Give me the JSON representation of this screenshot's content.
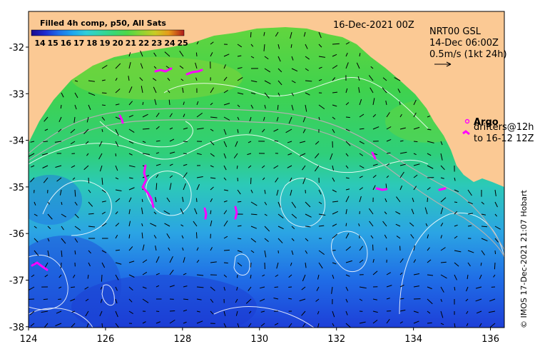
{
  "map": {
    "colorbar_title": "Filled 4h comp, p50, All Sats",
    "colorbar_ticks": [
      "14",
      "15",
      "16",
      "17",
      "18",
      "19",
      "20",
      "21",
      "22",
      "23",
      "24",
      "25"
    ],
    "colorbar_colors": [
      "#1a0a8c",
      "#1e2bd0",
      "#1f6fe8",
      "#1ea6ee",
      "#2fcfd8",
      "#33d6a6",
      "#39d874",
      "#4fd846",
      "#8ed432",
      "#c9cc24",
      "#e79a1a",
      "#d8501a",
      "#b01a1a"
    ],
    "date_label": "16-Dec-2021 00Z",
    "product_label": "NRT00 GSL",
    "time_label": "14-Dec 06:00Z",
    "scale_label": "0.5m/s (1kt 24h)",
    "legend_argo": "Argo",
    "legend_drifters_1": "drifters@12h",
    "legend_drifters_2": "to 16-12 12Z",
    "copyright": "© IMOS 17-Dec-2021 21:07 Hobart",
    "x_ticks": [
      "124",
      "126",
      "128",
      "130",
      "132",
      "134",
      "136"
    ],
    "y_ticks": [
      "-32",
      "-33",
      "-34",
      "-35",
      "-36",
      "-37",
      "-38"
    ],
    "land_color": "#fbc994",
    "argo_color": "#ff00ff"
  }
}
